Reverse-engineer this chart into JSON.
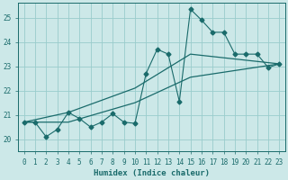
{
  "xlabel": "Humidex (Indice chaleur)",
  "bg_color": "#cce8e8",
  "grid_color": "#99cccc",
  "line_color": "#1a6b6b",
  "xlim": [
    -0.5,
    23.5
  ],
  "ylim": [
    19.5,
    25.6
  ],
  "xticks": [
    0,
    1,
    2,
    3,
    4,
    5,
    6,
    7,
    8,
    9,
    10,
    11,
    12,
    13,
    14,
    15,
    16,
    17,
    18,
    19,
    20,
    21,
    22,
    23
  ],
  "yticks": [
    20,
    21,
    22,
    23,
    24,
    25
  ],
  "line1_x": [
    0,
    1,
    2,
    3,
    4,
    5,
    6,
    7,
    8,
    9,
    10,
    11,
    12,
    13,
    14,
    15,
    16,
    17,
    18,
    19,
    20,
    21,
    22,
    23
  ],
  "line1_y": [
    20.7,
    20.7,
    20.1,
    20.4,
    21.1,
    20.85,
    20.5,
    20.7,
    21.05,
    20.7,
    20.65,
    22.7,
    23.7,
    23.5,
    21.55,
    25.35,
    24.9,
    24.4,
    24.4,
    23.5,
    23.5,
    23.5,
    22.95,
    23.1
  ],
  "line2_x": [
    0,
    4,
    10,
    15,
    23
  ],
  "line2_y": [
    20.7,
    20.7,
    21.5,
    22.55,
    23.1
  ],
  "line3_x": [
    0,
    4,
    10,
    15,
    23
  ],
  "line3_y": [
    20.7,
    21.1,
    22.1,
    23.5,
    23.1
  ]
}
